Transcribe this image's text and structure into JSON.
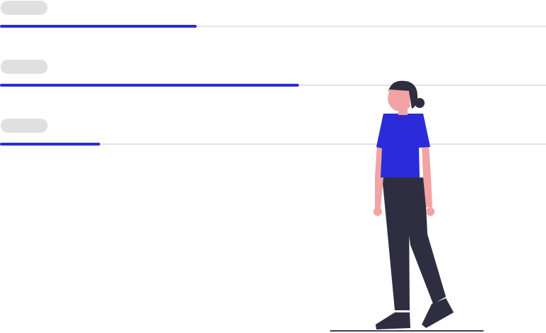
{
  "colors": {
    "accent": "#2b2bd9",
    "track": "#e4e4e4",
    "pill": "#e0e0e0",
    "skin": "#f2a3a3",
    "hair": "#2f2e41",
    "pants": "#2f2e41",
    "shirt": "#2b2bd9",
    "ground": "#3f3d56"
  },
  "progress_rows": [
    {
      "progress": 0.36
    },
    {
      "progress": 0.548
    },
    {
      "progress": 0.183
    }
  ],
  "illustration": {
    "icon": "woman-walking-illustration"
  }
}
